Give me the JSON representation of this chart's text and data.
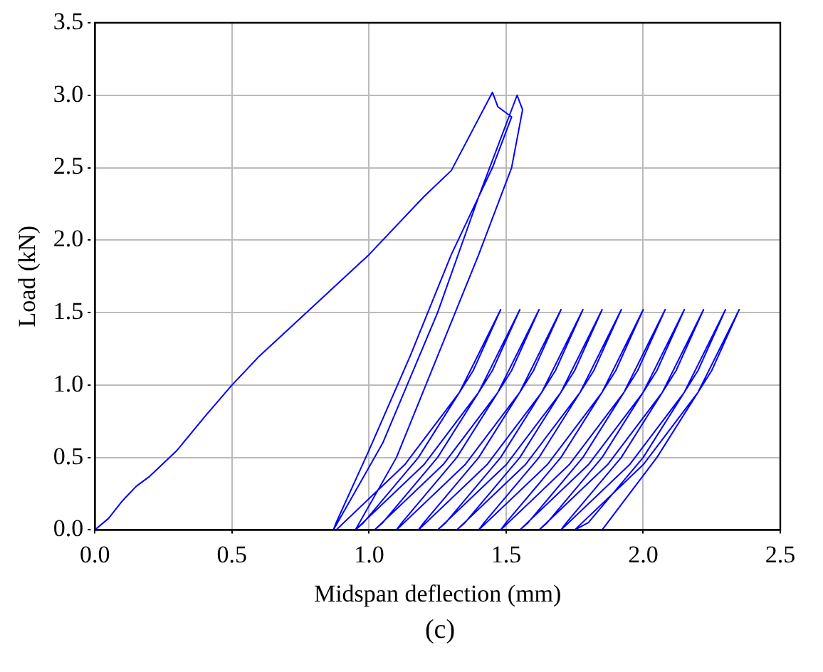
{
  "chart_data": {
    "type": "line",
    "xlabel": "Midspan deflection (mm)",
    "ylabel": "Load (kN)",
    "annotations": [
      "(c)"
    ],
    "xlim": [
      0,
      2.5
    ],
    "ylim": [
      0,
      3.5
    ],
    "xticks": [
      {
        "value": 0,
        "label": "0.0"
      },
      {
        "value": 0.5,
        "label": "0.5"
      },
      {
        "value": 1,
        "label": "1.0"
      },
      {
        "value": 1.5,
        "label": "1.5"
      },
      {
        "value": 2,
        "label": "2.0"
      },
      {
        "value": 2.5,
        "label": "2.5"
      }
    ],
    "yticks": [
      {
        "value": 0,
        "label": "0.0"
      },
      {
        "value": 0.5,
        "label": "0.5"
      },
      {
        "value": 1,
        "label": "1.0"
      },
      {
        "value": 1.5,
        "label": "1.5"
      },
      {
        "value": 2,
        "label": "2.0"
      },
      {
        "value": 2.5,
        "label": "2.5"
      },
      {
        "value": 3,
        "label": "3.0"
      },
      {
        "value": 3.5,
        "label": "3.5"
      }
    ],
    "grid": true,
    "legend": false,
    "marker": "none",
    "line_style": "solid",
    "series": [
      {
        "color": "#0000ff",
        "x": [
          0,
          0.05,
          0.1,
          0.15,
          0.2,
          0.3,
          0.4,
          0.5,
          0.6,
          0.8,
          1.0,
          1.2,
          1.3,
          1.45,
          1.47,
          1.52,
          1.45,
          1.3,
          1.15,
          1.0,
          0.88,
          0.87,
          0.9,
          1.05,
          1.25,
          1.4,
          1.54,
          1.56,
          1.52,
          1.4,
          1.25,
          1.1,
          0.95,
          0.88,
          1.13,
          1.33,
          1.48,
          1.38,
          1.18,
          0.98,
          0.95,
          1.2,
          1.4,
          1.55,
          1.45,
          1.25,
          1.05,
          1.02,
          1.27,
          1.47,
          1.62,
          1.52,
          1.32,
          1.12,
          1.1,
          1.35,
          1.55,
          1.7,
          1.6,
          1.4,
          1.2,
          1.18,
          1.43,
          1.63,
          1.78,
          1.68,
          1.48,
          1.28,
          1.25,
          1.5,
          1.7,
          1.85,
          1.75,
          1.55,
          1.35,
          1.32,
          1.57,
          1.77,
          1.92,
          1.82,
          1.62,
          1.42,
          1.4,
          1.65,
          1.85,
          2.0,
          1.9,
          1.7,
          1.5,
          1.48,
          1.73,
          1.93,
          2.08,
          1.98,
          1.78,
          1.58,
          1.55,
          1.8,
          2.0,
          2.15,
          2.05,
          1.85,
          1.65,
          1.62,
          1.87,
          2.07,
          2.22,
          2.12,
          1.92,
          1.72,
          1.7,
          1.95,
          2.15,
          2.3,
          2.2,
          2.0,
          1.8,
          1.75,
          2.0,
          2.2,
          2.35,
          2.25,
          2.05,
          1.85
        ],
        "values": [
          0,
          0.08,
          0.2,
          0.3,
          0.37,
          0.55,
          0.78,
          1.0,
          1.2,
          1.55,
          1.9,
          2.3,
          2.48,
          3.02,
          2.92,
          2.85,
          2.5,
          1.9,
          1.2,
          0.55,
          0.05,
          0,
          0.1,
          0.6,
          1.5,
          2.3,
          3.0,
          2.9,
          2.5,
          1.9,
          1.2,
          0.5,
          0,
          0,
          0.45,
          0.95,
          1.52,
          1.1,
          0.5,
          0.05,
          0,
          0.45,
          0.95,
          1.52,
          1.1,
          0.5,
          0.05,
          0,
          0.45,
          0.95,
          1.52,
          1.1,
          0.5,
          0.05,
          0,
          0.45,
          0.95,
          1.52,
          1.1,
          0.5,
          0.05,
          0,
          0.45,
          0.95,
          1.52,
          1.1,
          0.5,
          0.05,
          0,
          0.45,
          0.95,
          1.52,
          1.1,
          0.5,
          0.05,
          0,
          0.45,
          0.95,
          1.52,
          1.1,
          0.5,
          0.05,
          0,
          0.45,
          0.95,
          1.52,
          1.1,
          0.5,
          0.05,
          0,
          0.45,
          0.95,
          1.52,
          1.1,
          0.5,
          0.05,
          0,
          0.45,
          0.95,
          1.52,
          1.1,
          0.5,
          0.05,
          0,
          0.45,
          0.95,
          1.52,
          1.1,
          0.5,
          0.05,
          0,
          0.45,
          0.95,
          1.52,
          1.1,
          0.5,
          0.05,
          0,
          0.45,
          0.95,
          1.52,
          1.1,
          0.5,
          0
        ]
      }
    ]
  }
}
